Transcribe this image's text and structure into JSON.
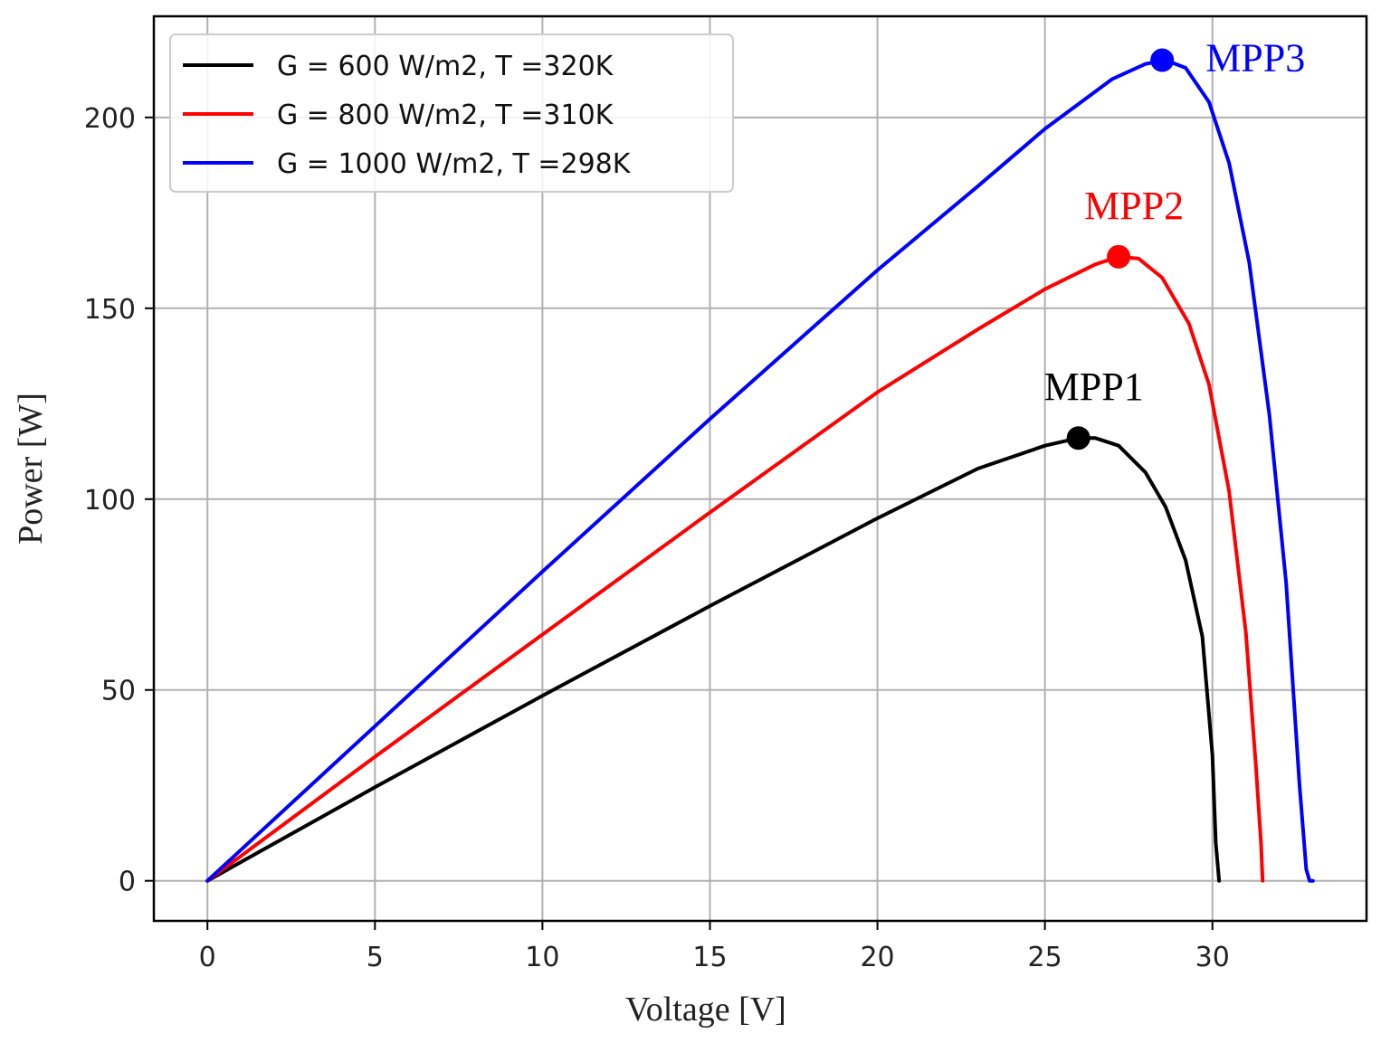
{
  "chart_data": {
    "type": "line",
    "title": "",
    "xlabel": "Voltage [V]",
    "ylabel": "Power [W]",
    "xlim": [
      -1.6,
      34.6
    ],
    "ylim": [
      -10.5,
      226.5
    ],
    "xticks": [
      0,
      5,
      10,
      15,
      20,
      25,
      30
    ],
    "yticks": [
      0,
      50,
      100,
      150,
      200
    ],
    "grid": true,
    "legend_position": "top-left",
    "series": [
      {
        "name": "G = 600 W/m2, T =320K",
        "color": "#000000",
        "x": [
          0,
          5,
          10,
          15,
          20,
          23,
          25,
          26,
          26.5,
          27.2,
          28,
          28.6,
          29.2,
          29.7,
          30.0,
          30.1,
          30.2
        ],
        "y": [
          0,
          24.5,
          48.5,
          72,
          95,
          108,
          114,
          116,
          116,
          114,
          107,
          98,
          84,
          64,
          33,
          10,
          0
        ]
      },
      {
        "name": "G = 800 W/m2, T =310K",
        "color": "#ff0000",
        "x": [
          0,
          5,
          10,
          15,
          20,
          23,
          25,
          26.5,
          27.2,
          27.8,
          28.5,
          29.3,
          29.9,
          30.5,
          31.0,
          31.3,
          31.45,
          31.5
        ],
        "y": [
          0,
          32.5,
          64.5,
          96.5,
          128,
          144.5,
          155,
          161.5,
          163.5,
          163,
          158,
          146,
          130,
          102,
          65,
          30,
          10,
          0
        ]
      },
      {
        "name": "G = 1000 W/m2, T =298K",
        "color": "#0000ff",
        "x": [
          0,
          5,
          10,
          15,
          20,
          23,
          25,
          27,
          28,
          28.6,
          29.2,
          29.9,
          30.5,
          31.1,
          31.7,
          32.2,
          32.6,
          32.8,
          32.9,
          33.0
        ],
        "y": [
          0,
          40.5,
          81,
          121,
          160,
          182,
          197,
          210,
          214,
          215,
          213,
          204,
          188,
          162,
          122,
          78,
          25,
          3,
          0,
          0
        ]
      }
    ],
    "annotations": [
      {
        "label": "MPP1",
        "x": 26.0,
        "y": 116.0,
        "color": "#000000"
      },
      {
        "label": "MPP2",
        "x": 27.2,
        "y": 163.5,
        "color": "#ff0000"
      },
      {
        "label": "MPP3",
        "x": 28.5,
        "y": 215.0,
        "color": "#0000ff"
      }
    ]
  }
}
